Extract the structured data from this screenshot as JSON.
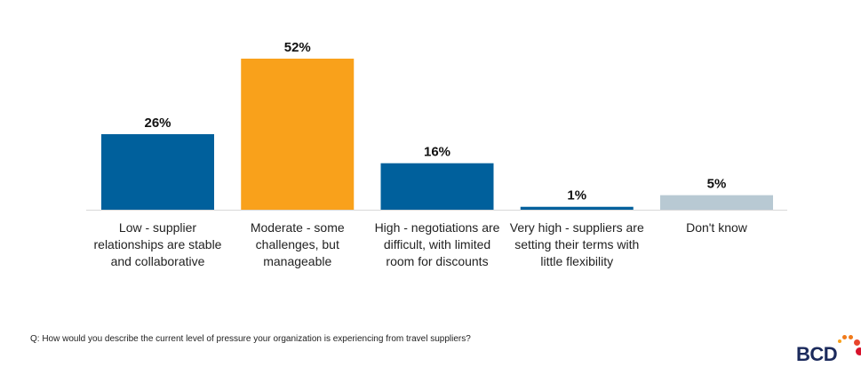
{
  "chart_data": {
    "type": "bar",
    "categories": [
      "Low - supplier relationships are stable and collaborative",
      "Moderate - some challenges, but manageable",
      "High - negotiations are difficult, with limited room for discounts",
      "Very high - suppliers are setting their terms with little flexibility",
      "Don't know"
    ],
    "category_lines": [
      [
        "Low - supplier",
        "relationships are stable",
        "and collaborative"
      ],
      [
        "Moderate - some",
        "challenges, but",
        "manageable"
      ],
      [
        "High - negotiations are",
        "difficult, with limited",
        "room for discounts"
      ],
      [
        "Very high - suppliers are",
        "setting their terms with",
        "little flexibility"
      ],
      [
        "Don't know"
      ]
    ],
    "values": [
      26,
      52,
      16,
      1,
      5
    ],
    "data_labels": [
      "26%",
      "52%",
      "16%",
      "1%",
      "5%"
    ],
    "colors": [
      "#00609c",
      "#f9a11b",
      "#00609c",
      "#00609c",
      "#b8c9d3"
    ],
    "ylim": [
      0,
      52
    ],
    "grid": false,
    "legend": "none"
  },
  "footer": {
    "question": "Q: How would you describe the current level of pressure your organization is experiencing from travel suppliers?"
  },
  "logo": {
    "text": "BCD",
    "dot_colors": [
      "#f9a11b",
      "#f07a1a",
      "#e8452c",
      "#d7132c"
    ]
  }
}
